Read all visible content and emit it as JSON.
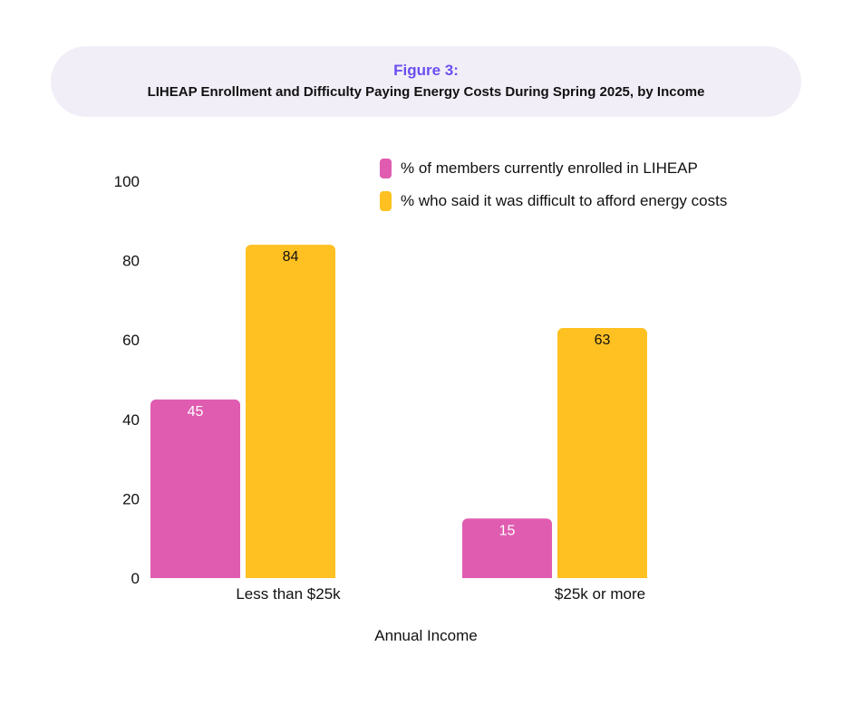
{
  "header": {
    "figure_label": "Figure 3:",
    "title": "LIHEAP Enrollment and Difficulty Paying Energy Costs During Spring 2025, by Income"
  },
  "chart_data": {
    "type": "bar",
    "categories": [
      "Less than $25k",
      "$25k or more"
    ],
    "series": [
      {
        "name": "% of members currently enrolled in LIHEAP",
        "values": [
          45,
          15
        ],
        "color": "#e05cb0",
        "label_color": "#ffffff"
      },
      {
        "name": "% who said it was difficult to afford energy costs",
        "values": [
          84,
          63
        ],
        "color": "#ffc022",
        "label_color": "#111111"
      }
    ],
    "xlabel": "Annual Income",
    "ylabel": "",
    "ylim": [
      0,
      100
    ],
    "yticks": [
      0,
      20,
      40,
      60,
      80,
      100
    ],
    "grid": false,
    "legend_position": "top-right"
  }
}
